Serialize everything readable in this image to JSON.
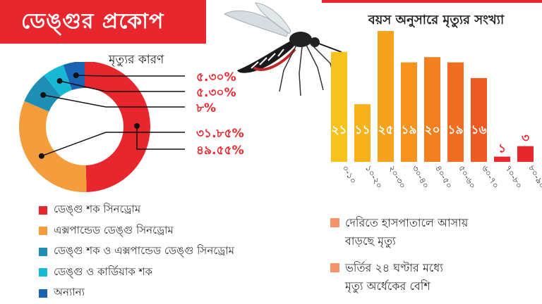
{
  "header": {
    "title": "ডেঙ্গুর প্রকোপ"
  },
  "colors": {
    "red": "#e8262d",
    "orange": "#f59c3c",
    "teal": "#1f8eb5",
    "cyan": "#17b8d6",
    "blue": "#1a63b3"
  },
  "chart_data": [
    {
      "type": "pie",
      "variant": "donut",
      "title": "মৃত্যুর কারণ",
      "slices": [
        {
          "label": "ডেঙ্গু শক সিনড্রোম",
          "value": 49.55,
          "value_label": "৪৯.৫৫%",
          "color": "#e8262d"
        },
        {
          "label": "এক্সপান্ডেড ডেঙ্গু সিনড্রোম",
          "value": 31.85,
          "value_label": "৩১.৮৫%",
          "color": "#f59c3c"
        },
        {
          "label": "ডেঙ্গু শক ও এক্সপান্ডেড ডেঙ্গু সিনড্রোম",
          "value": 8,
          "value_label": "৮%",
          "color": "#1f8eb5"
        },
        {
          "label": "ডেঙ্গু ও কার্ডিয়াক শক",
          "value": 5.3,
          "value_label": "৫.৩০%",
          "color": "#17b8d6"
        },
        {
          "label": "অন্যান্য",
          "value": 5.3,
          "value_label": "৫.৩০%",
          "color": "#1a63b3"
        }
      ],
      "legend": "bottom"
    },
    {
      "type": "bar",
      "title": "বয়স অনুসারে মৃত্যুর সংখ্যা",
      "categories": [
        "০-১০",
        "১০-২০",
        "২০-৩০",
        "৩০-৪০",
        "৪০-৫০",
        "৫০-৬০",
        "৬০-৭০",
        "৭০-৮০",
        "৮০-৯০"
      ],
      "values": [
        21,
        11,
        25,
        19,
        20,
        19,
        16,
        1,
        3
      ],
      "value_labels": [
        "২১",
        "১১",
        "২৫",
        "১৯",
        "২০",
        "১৯",
        "১৬",
        "১",
        "৩"
      ],
      "colors": [
        "#f7c21b",
        "#f7b21b",
        "#f5a21c",
        "#f5931e",
        "#f3801f",
        "#f06d22",
        "#ee5a24",
        "#e8262d",
        "#e8262d"
      ],
      "ylim": [
        0,
        25
      ]
    }
  ],
  "notes": [
    {
      "line1": "দেরিতে হাসপাতালে আসায়",
      "line2": "বাড়ছে মৃত্যু",
      "color": "#f5936a"
    },
    {
      "line1": "ভর্তির ২৪ ঘণ্টার মধ্যে",
      "line2": "মৃত্যু অর্ধেকের বেশি",
      "color": "#f5936a"
    }
  ],
  "illustration": {
    "icon": "mosquito-icon"
  }
}
